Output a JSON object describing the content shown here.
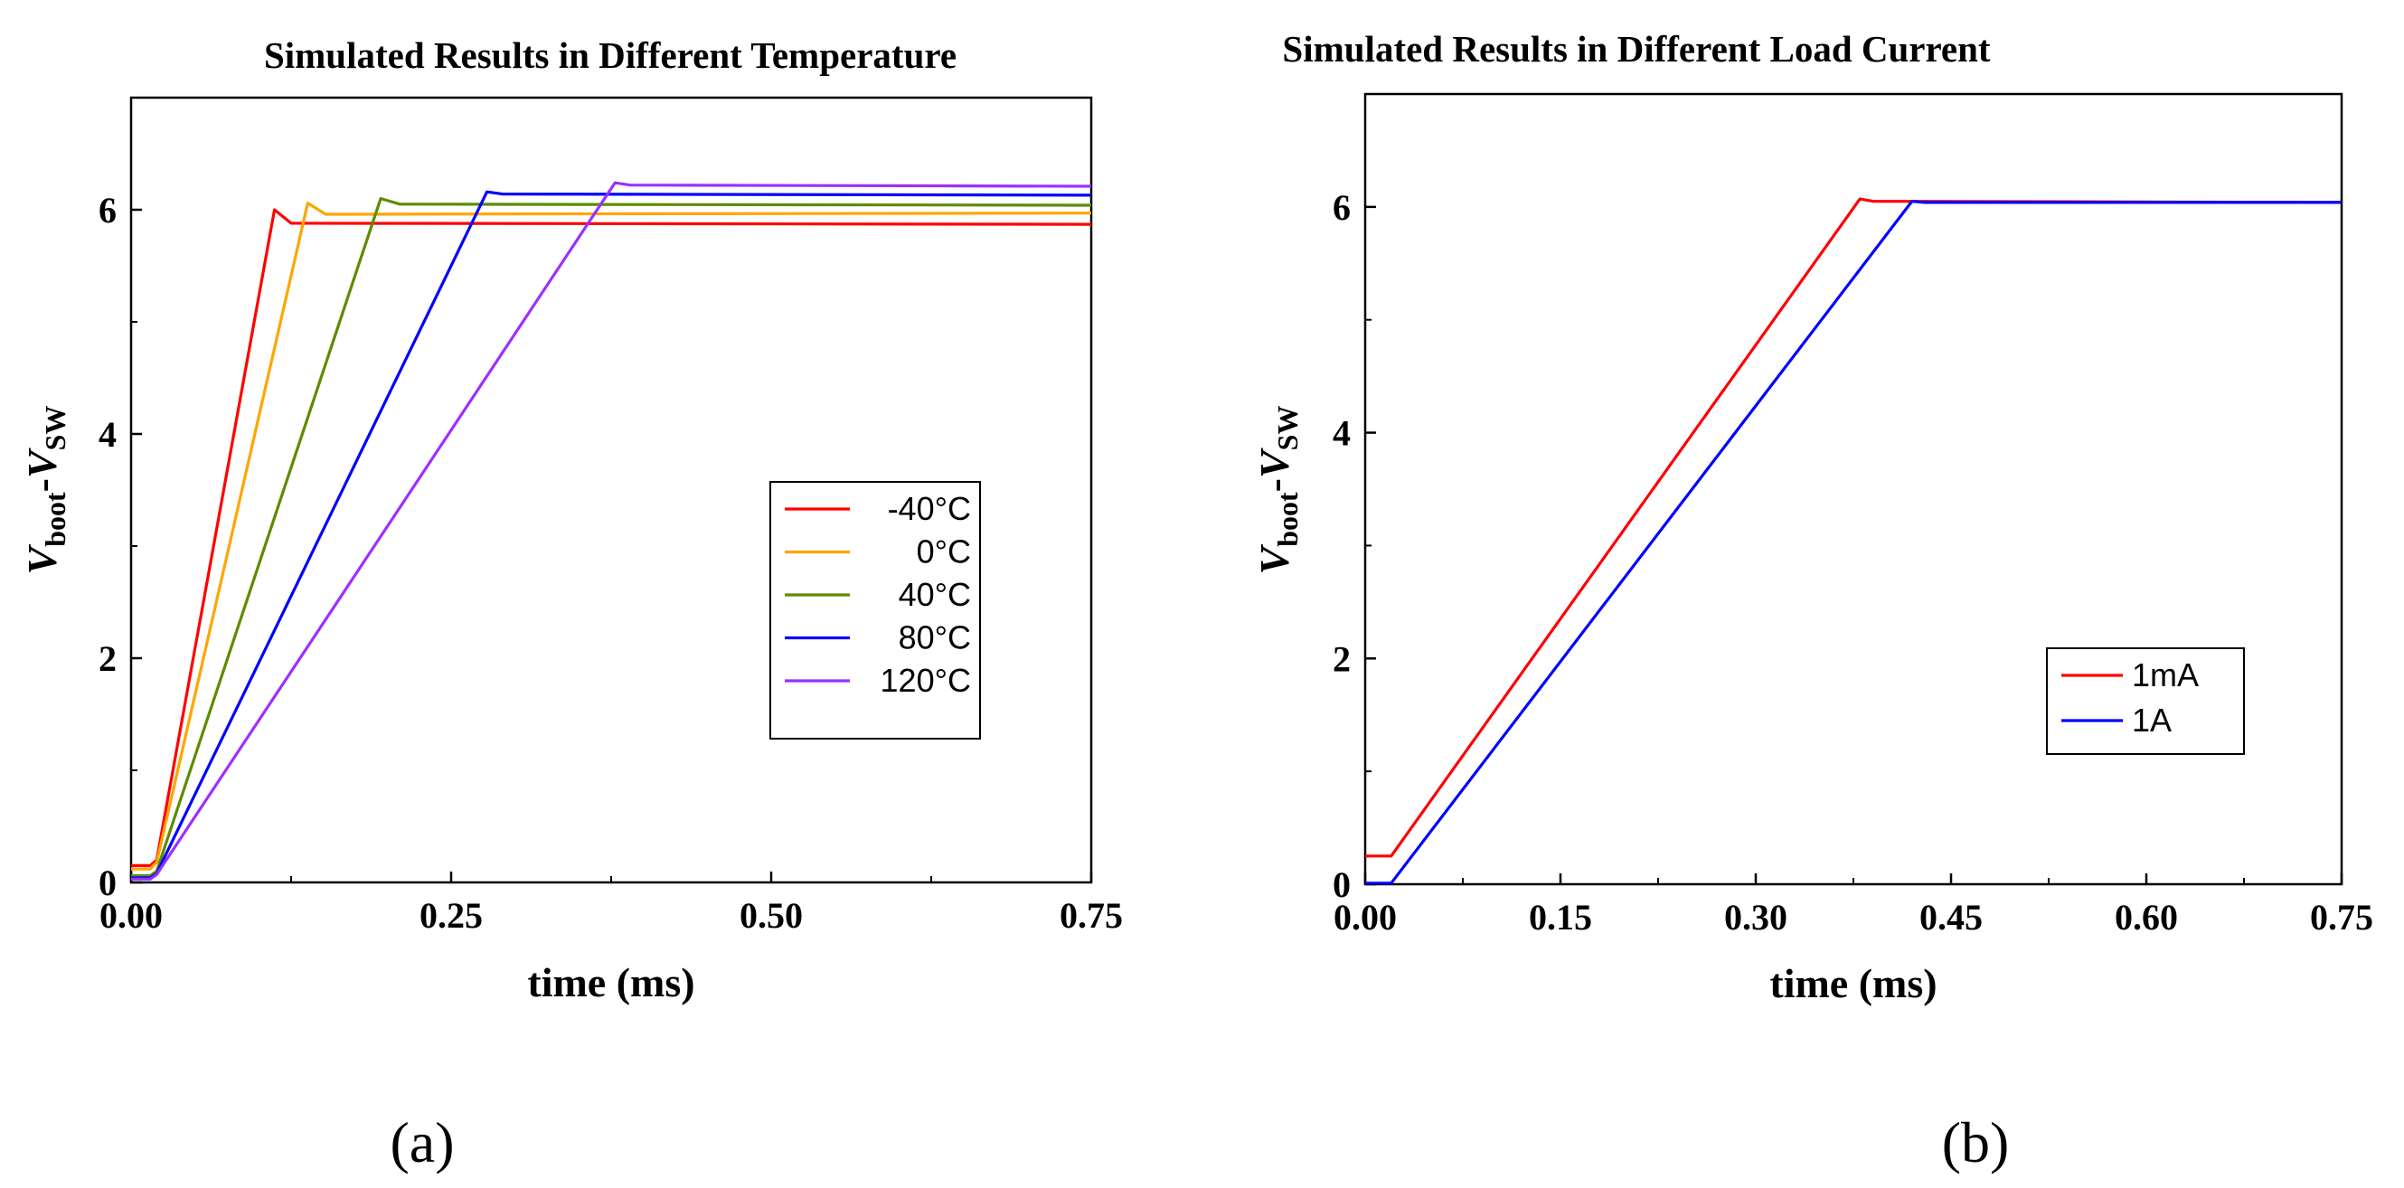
{
  "chart_data": [
    {
      "type": "line",
      "panel_label": "(a)",
      "title": "Simulated Results in Different Temperature",
      "xlabel": "time (ms)",
      "ylabel": {
        "v": "V",
        "sub1": "boot",
        "dash": "-",
        "v2": "V",
        "sub2": "SW"
      },
      "xlim": [
        0,
        0.75
      ],
      "ylim": [
        0,
        7
      ],
      "xticks": [
        0,
        0.25,
        0.5,
        0.75
      ],
      "xtick_labels": [
        "0.00",
        "0.25",
        "0.50",
        "0.75"
      ],
      "yticks": [
        0,
        2,
        4,
        6
      ],
      "ytick_labels": [
        "0",
        "2",
        "4",
        "6"
      ],
      "legend_position": "right-middle",
      "series": [
        {
          "name": "-40°C",
          "color": "#ff0000",
          "x": [
            0,
            0.015,
            0.02,
            0.112,
            0.125,
            0.75
          ],
          "y": [
            0.15,
            0.15,
            0.2,
            6.0,
            5.88,
            5.87
          ]
        },
        {
          "name": "0°C",
          "color": "#ffa500",
          "x": [
            0,
            0.015,
            0.02,
            0.138,
            0.152,
            0.75
          ],
          "y": [
            0.12,
            0.12,
            0.18,
            6.06,
            5.96,
            5.97
          ]
        },
        {
          "name": "40°C",
          "color": "#5c8c00",
          "x": [
            0,
            0.015,
            0.02,
            0.195,
            0.21,
            0.75
          ],
          "y": [
            0.06,
            0.06,
            0.1,
            6.1,
            6.05,
            6.04
          ]
        },
        {
          "name": "80°C",
          "color": "#0000ff",
          "x": [
            0,
            0.015,
            0.02,
            0.278,
            0.29,
            0.75
          ],
          "y": [
            0.04,
            0.04,
            0.08,
            6.16,
            6.14,
            6.13
          ]
        },
        {
          "name": "120°C",
          "color": "#9b30ff",
          "x": [
            0,
            0.015,
            0.02,
            0.378,
            0.39,
            0.75
          ],
          "y": [
            0.03,
            0.03,
            0.07,
            6.24,
            6.22,
            6.21
          ]
        }
      ]
    },
    {
      "type": "line",
      "panel_label": "(b)",
      "title": "Simulated Results in Different Load Current",
      "xlabel": "time (ms)",
      "ylabel": {
        "v": "V",
        "sub1": "boot",
        "dash": "-",
        "v2": "V",
        "sub2": "SW"
      },
      "xlim": [
        0,
        0.75
      ],
      "ylim": [
        0,
        7
      ],
      "xticks": [
        0,
        0.15,
        0.3,
        0.45,
        0.6,
        0.75
      ],
      "xtick_labels": [
        "0.00",
        "0.15",
        "0.30",
        "0.45",
        "0.60",
        "0.75"
      ],
      "yticks": [
        0,
        2,
        4,
        6
      ],
      "ytick_labels": [
        "0",
        "2",
        "4",
        "6"
      ],
      "legend_position": "right-lower",
      "series": [
        {
          "name": "1mA",
          "color": "#ff0000",
          "x": [
            0,
            0.02,
            0.38,
            0.39,
            0.75
          ],
          "y": [
            0.25,
            0.25,
            6.07,
            6.05,
            6.04
          ]
        },
        {
          "name": "1A",
          "color": "#0000ff",
          "x": [
            0,
            0.02,
            0.42,
            0.43,
            0.75
          ],
          "y": [
            0.01,
            0.01,
            6.05,
            6.04,
            6.04
          ]
        }
      ]
    }
  ]
}
